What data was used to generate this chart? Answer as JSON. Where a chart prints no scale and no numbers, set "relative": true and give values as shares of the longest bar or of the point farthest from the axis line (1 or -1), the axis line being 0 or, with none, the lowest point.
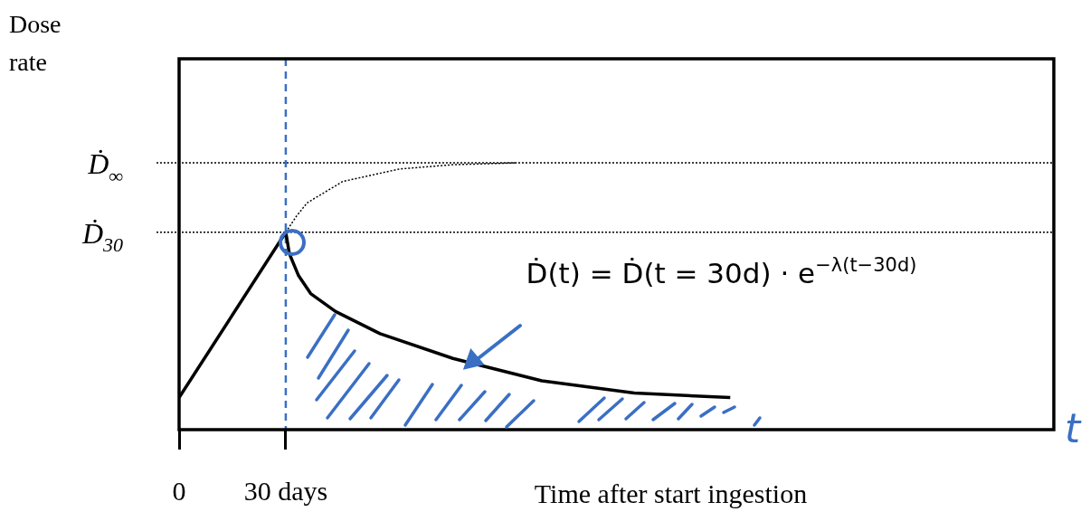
{
  "chart_data": {
    "type": "line",
    "relative": true,
    "xlabel": "Time after start ingestion",
    "xlim": [
      0,
      246
    ],
    "xticks": [
      0,
      {
        "value": 30,
        "label": "30 days"
      }
    ],
    "series": [
      {
        "color": "#000000",
        "line_style": "solid",
        "x": [
          0,
          30,
          31,
          33.6,
          37,
          44,
          56.5,
          77,
          102,
          128,
          155
        ],
        "values": [
          0.12,
          0.74,
          0.66,
          0.577,
          0.51,
          0.443,
          0.36,
          0.267,
          0.183,
          0.137,
          0.12
        ]
      },
      {
        "color": "#000000",
        "line_style": "dotted",
        "x": [
          30,
          33,
          36,
          46,
          62,
          77,
          95
        ],
        "values": [
          0.74,
          0.8,
          0.85,
          0.93,
          0.977,
          0.993,
          1
        ]
      }
    ],
    "ref_lines": [
      {
        "axis": "y",
        "value": 1,
        "label": "Ḋ$_{∞}$",
        "color": "#000000",
        "line_style": "dotted"
      },
      {
        "axis": "y",
        "value": 0.74,
        "label": "Ḋ$_{30}$",
        "color": "#000000",
        "line_style": "dotted"
      },
      {
        "axis": "x",
        "value": 30,
        "color": "#3a6fc4",
        "line_style": "dashed"
      }
    ],
    "annotations": [
      "Ḋ(t) = Ḋ(t = 30d) · e$^{−λ(t−30d)}$",
      "Dose rate",
      "t"
    ],
    "grid": false,
    "legend": false,
    "marker": "none"
  }
}
